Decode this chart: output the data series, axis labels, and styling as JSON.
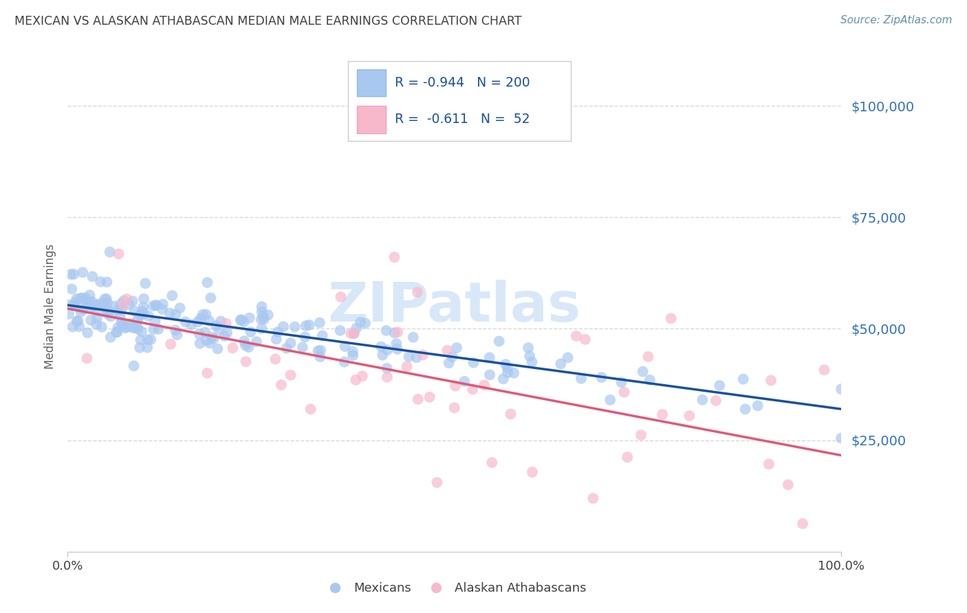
{
  "title": "MEXICAN VS ALASKAN ATHABASCAN MEDIAN MALE EARNINGS CORRELATION CHART",
  "source": "Source: ZipAtlas.com",
  "ylabel": "Median Male Earnings",
  "xlabel": "",
  "xlim": [
    0,
    100
  ],
  "ylim": [
    0,
    110000
  ],
  "yticks": [
    25000,
    50000,
    75000,
    100000
  ],
  "ytick_labels": [
    "$25,000",
    "$50,000",
    "$75,000",
    "$100,000"
  ],
  "xtick_labels": [
    "0.0%",
    "100.0%"
  ],
  "blue_color": "#A8C8F0",
  "blue_edge_color": "#90B8E8",
  "blue_line_color": "#1850A0",
  "pink_color": "#F8B8CC",
  "pink_edge_color": "#F0A0BC",
  "pink_line_color": "#E05878",
  "R_blue": -0.944,
  "N_blue": 200,
  "R_pink": -0.611,
  "N_pink": 52,
  "legend_label_blue": "Mexicans",
  "legend_label_pink": "Alaskan Athabascans",
  "watermark": "ZIPatlas",
  "watermark_blue": "#C8D8F0",
  "watermark_color": "#D8E8F8",
  "background_color": "#FFFFFF",
  "title_color": "#404040",
  "source_color": "#6090B0",
  "axis_label_color": "#606060",
  "ytick_color": "#3070C0",
  "grid_color": "#D8D8D8",
  "grid_style": "--",
  "blue_x_mean": 35,
  "blue_x_std": 25,
  "blue_y_intercept": 55000,
  "blue_y_slope": -230,
  "blue_noise_std": 3500,
  "pink_x_mean": 45,
  "pink_x_std": 30,
  "pink_y_intercept": 55000,
  "pink_y_slope": -380,
  "pink_noise_std": 12000,
  "blue_scatter_seed": 42,
  "pink_scatter_seed": 7
}
